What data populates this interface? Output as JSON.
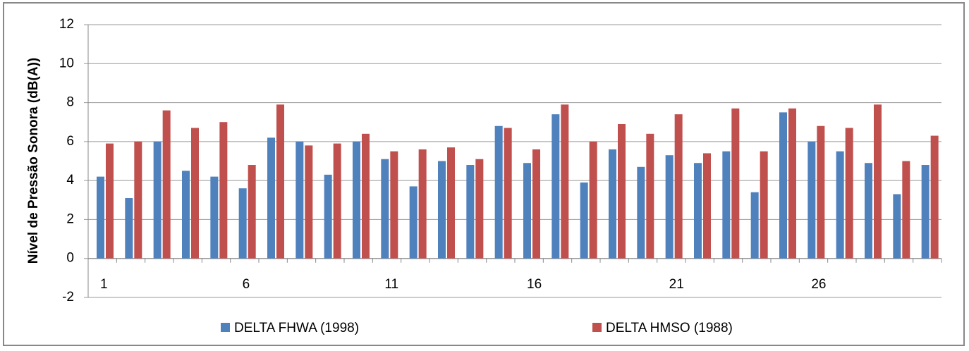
{
  "chart_data": {
    "type": "bar",
    "y_label": "Nível de Pressão Sonora (dB(A))",
    "categories": [
      "1",
      null,
      null,
      null,
      null,
      "6",
      null,
      null,
      null,
      null,
      "11",
      null,
      null,
      null,
      null,
      "16",
      null,
      null,
      null,
      null,
      "21",
      null,
      null,
      null,
      null,
      "26",
      null,
      null,
      null,
      null
    ],
    "series": [
      {
        "name": "DELTA FHWA (1998)",
        "color": "#4f81bd",
        "values": [
          4.2,
          3.1,
          6.0,
          4.5,
          4.2,
          3.6,
          6.2,
          6.0,
          4.3,
          6.0,
          5.1,
          3.7,
          5.0,
          4.8,
          6.8,
          4.9,
          7.4,
          3.9,
          5.6,
          4.7,
          5.3,
          4.9,
          5.5,
          3.4,
          7.5,
          6.0,
          5.5,
          4.9,
          3.3,
          4.8
        ]
      },
      {
        "name": "DELTA HMSO (1988)",
        "color": "#c0504d",
        "values": [
          5.9,
          6.0,
          7.6,
          6.7,
          7.0,
          4.8,
          7.9,
          5.8,
          5.9,
          6.4,
          5.5,
          5.6,
          5.7,
          5.1,
          6.7,
          5.6,
          7.9,
          6.0,
          6.9,
          6.4,
          7.4,
          5.4,
          7.7,
          5.5,
          7.7,
          6.8,
          6.7,
          7.9,
          5.0,
          6.3
        ]
      }
    ],
    "ylim": [
      -2,
      12
    ],
    "yticks": [
      -2,
      0,
      2,
      4,
      6,
      8,
      10,
      12
    ],
    "grid": true,
    "legend": "bottom"
  }
}
